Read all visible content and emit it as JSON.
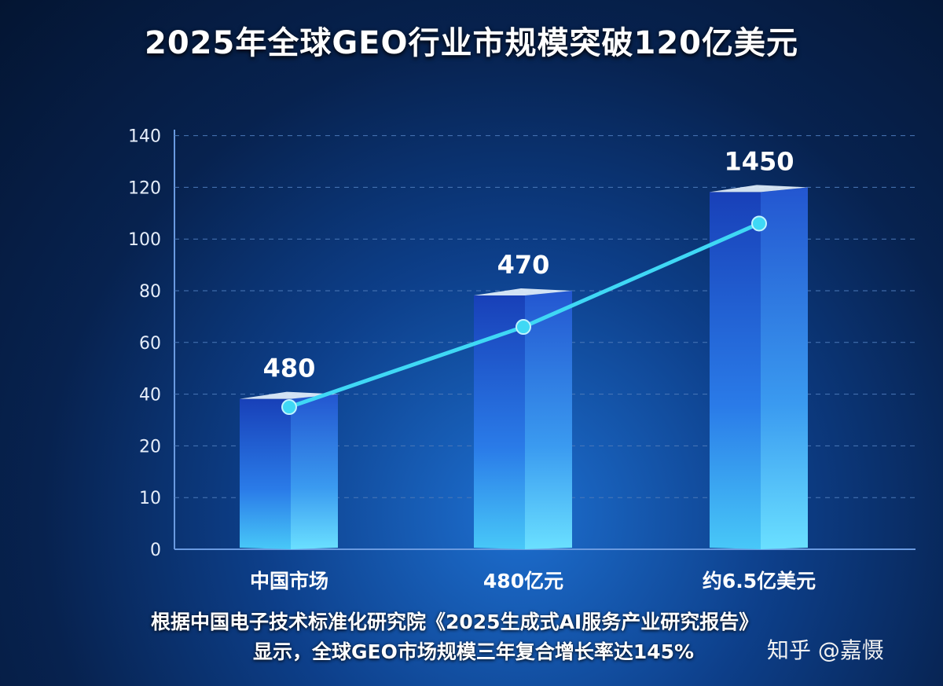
{
  "chart_data": {
    "type": "bar",
    "title": "2025年全球GEO行业市规模突破120亿美元",
    "categories": [
      "中国市场",
      "480亿元",
      "约6.5亿美元"
    ],
    "y_ticks": [
      0,
      10,
      20,
      40,
      60,
      80,
      100,
      120,
      140
    ],
    "ylim": [
      0,
      140
    ],
    "grid": true,
    "series": [
      {
        "name": "bars",
        "type": "bar",
        "values": [
          40,
          80,
          120
        ],
        "data_labels": [
          "480",
          "470",
          "1450"
        ]
      },
      {
        "name": "trend",
        "type": "line",
        "values": [
          35,
          66,
          106
        ]
      }
    ],
    "colors": {
      "bar": "#2a7be8",
      "line": "#3fd8f5",
      "grid": "#4b78b8"
    }
  },
  "footer": {
    "line1": "根据中国电子技术标准化研究院《2025生成式AI服务产业研究报告》",
    "line2": "显示，全球GEO市场规模三年复合增长率达145%",
    "watermark": "知乎 @嘉慑"
  }
}
